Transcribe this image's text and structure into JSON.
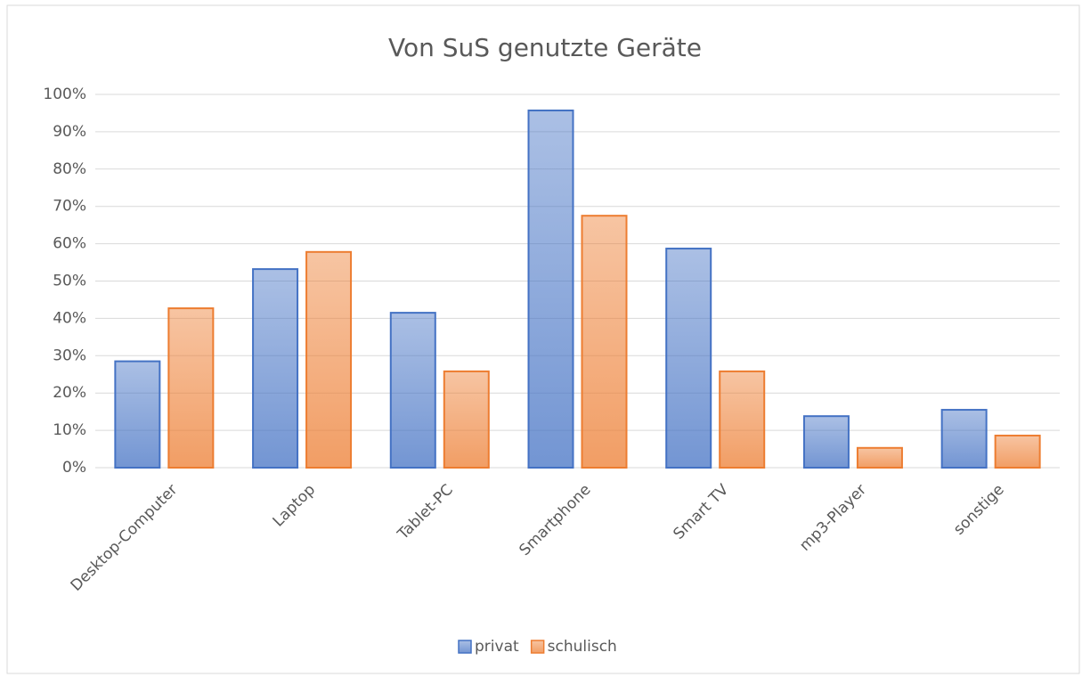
{
  "chart_data": {
    "type": "bar",
    "title": "Von SuS genutzte Geräte",
    "categories": [
      "Desktop-Computer",
      "Laptop",
      "Tablet-PC",
      "Smartphone",
      "Smart TV",
      "mp3-Player",
      "sonstige"
    ],
    "series": [
      {
        "name": "privat",
        "color": "#4472c4",
        "values": [
          28.5,
          53.2,
          41.5,
          95.7,
          58.7,
          13.8,
          15.5
        ]
      },
      {
        "name": "schulisch",
        "color": "#ed7d31",
        "values": [
          42.7,
          57.8,
          25.8,
          67.5,
          25.8,
          5.3,
          8.6
        ]
      }
    ],
    "ylim": [
      0,
      100
    ],
    "yticks": [
      {
        "value": 0,
        "label": "0%"
      },
      {
        "value": 10,
        "label": "10%"
      },
      {
        "value": 20,
        "label": "20%"
      },
      {
        "value": 30,
        "label": "30%"
      },
      {
        "value": 40,
        "label": "40%"
      },
      {
        "value": 50,
        "label": "50%"
      },
      {
        "value": 60,
        "label": "60%"
      },
      {
        "value": 70,
        "label": "70%"
      },
      {
        "value": 80,
        "label": "80%"
      },
      {
        "value": 90,
        "label": "90%"
      },
      {
        "value": 100,
        "label": "100%"
      }
    ],
    "grid": true,
    "legend": "bottom"
  }
}
